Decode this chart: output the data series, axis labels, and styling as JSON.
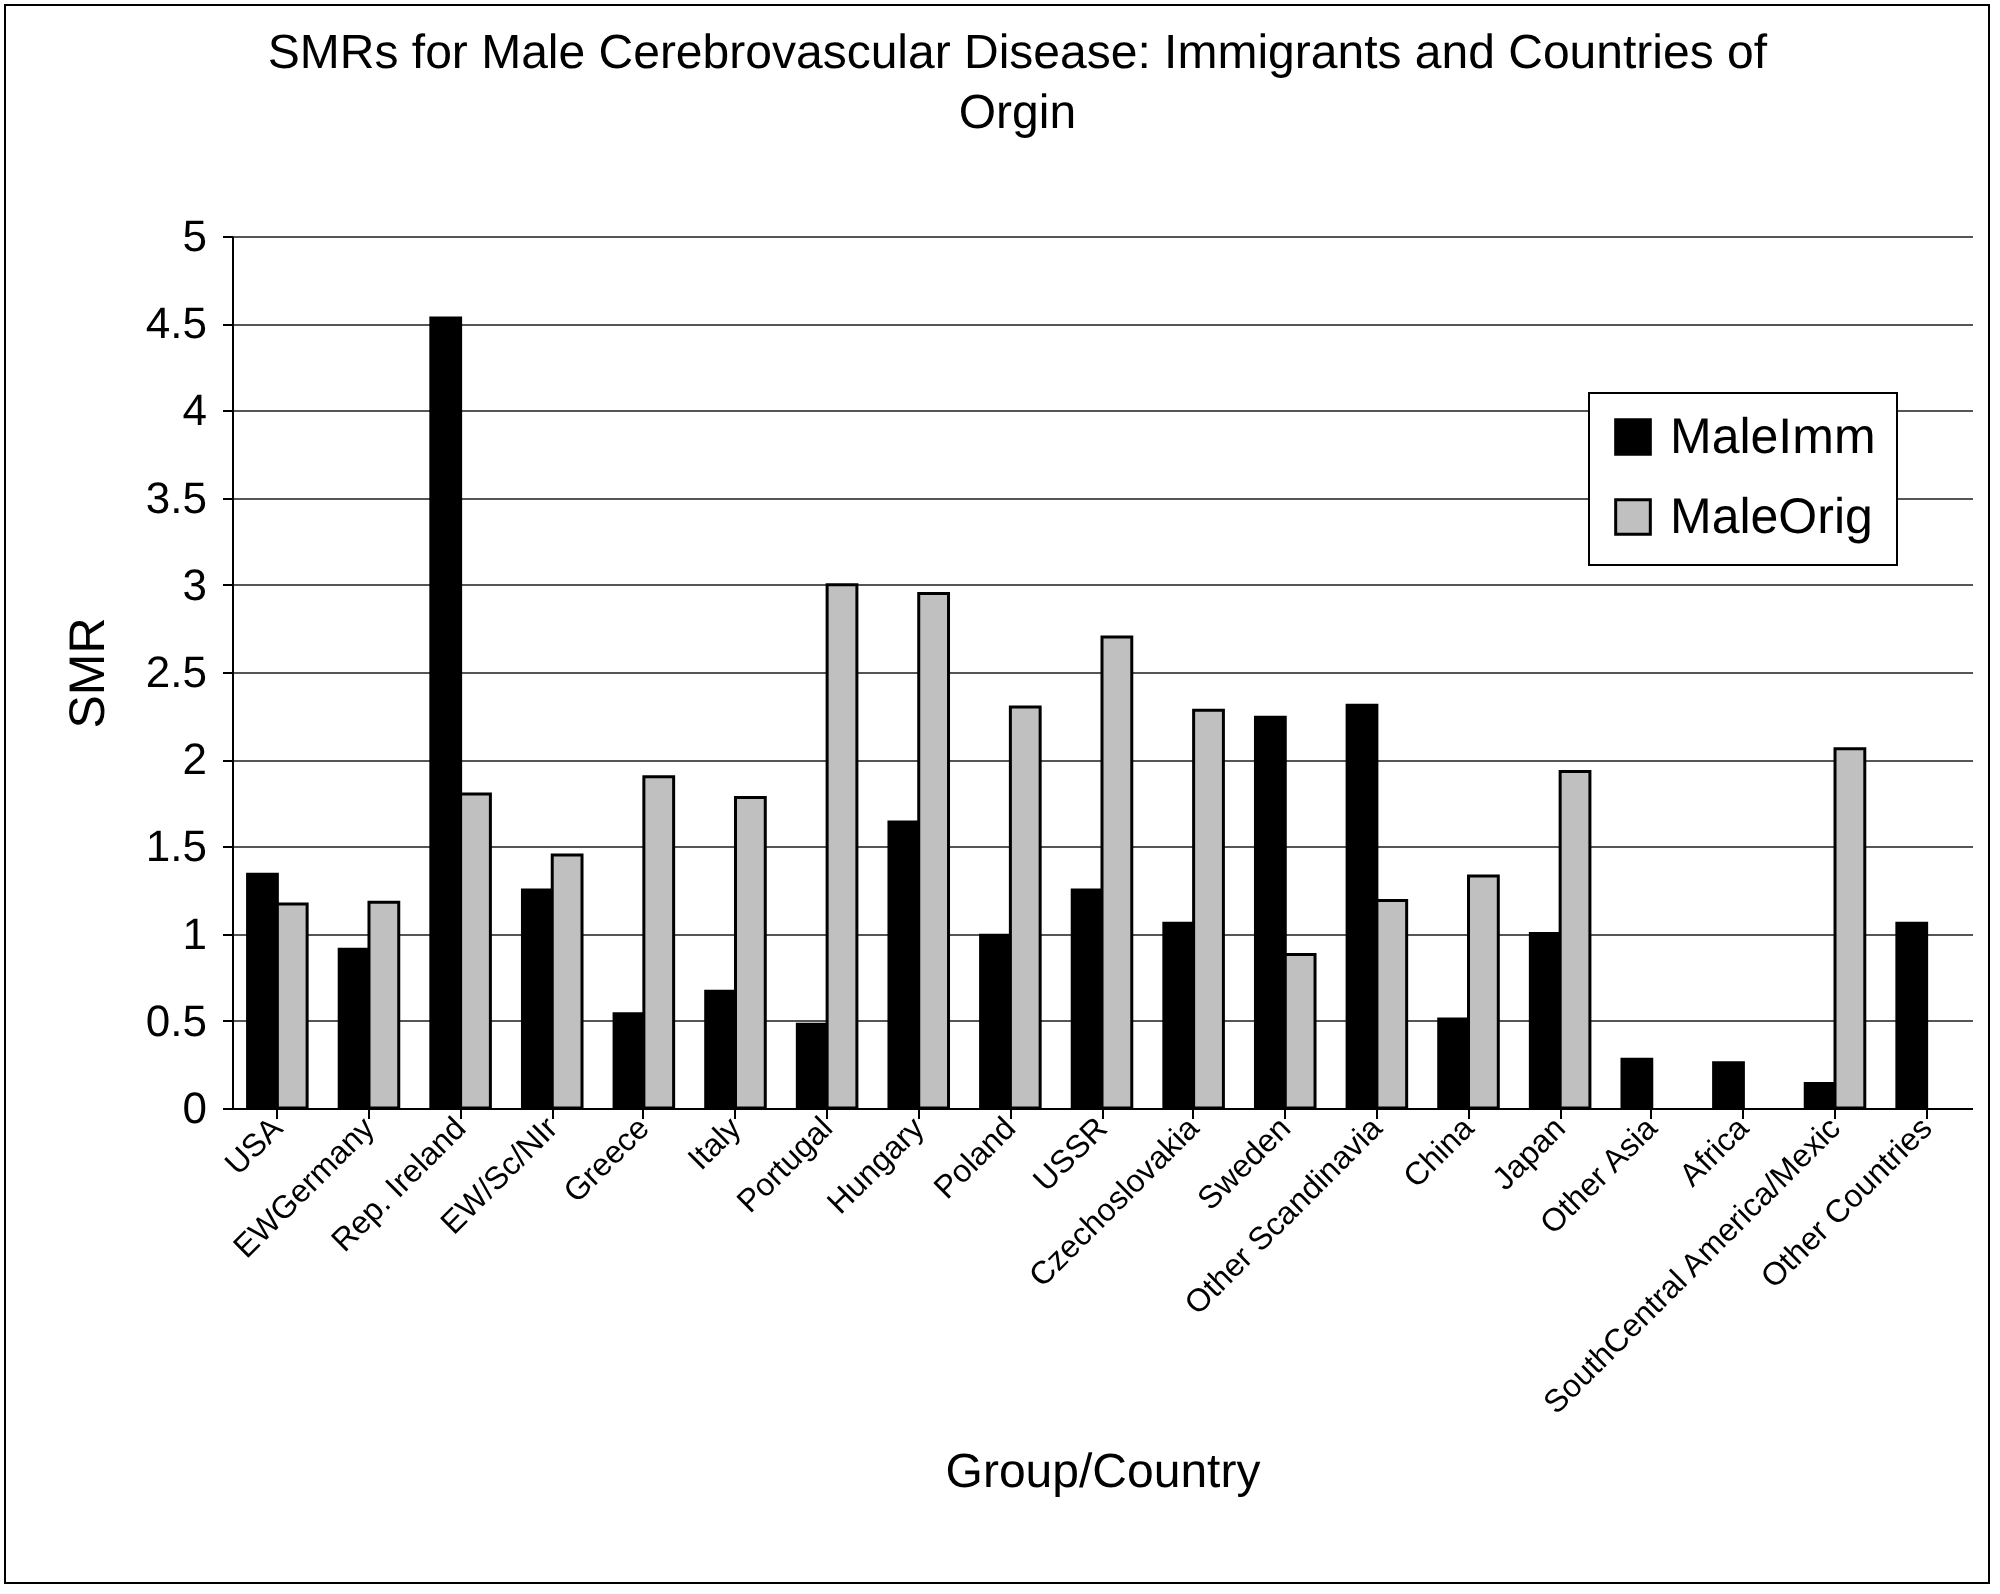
{
  "chart_data": {
    "type": "bar",
    "title": "SMRs for Male Cerebrovascular Disease: Immigrants and Countries of Orgin",
    "xlabel": "Group/Country",
    "ylabel": "SMR",
    "categories": [
      "USA",
      "EWGermany",
      "Rep. Ireland",
      "EW/Sc/NIr",
      "Greece",
      "Italy",
      "Portugal",
      "Hungary",
      "Poland",
      "USSR",
      "Czechoslovakia",
      "Sweden",
      "Other Scandinavia",
      "China",
      "Japan",
      "Other Asia",
      "Africa",
      "SouthCentral America/Mexic",
      "Other Countries"
    ],
    "series": [
      {
        "name": "MaleImm",
        "color": "#000000",
        "values": [
          1.34,
          0.91,
          4.53,
          1.25,
          0.54,
          0.67,
          0.48,
          1.64,
          0.99,
          1.25,
          1.06,
          2.24,
          2.31,
          0.51,
          1.0,
          0.28,
          0.26,
          0.14,
          1.06
        ]
      },
      {
        "name": "MaleOrig",
        "color": "#c0c0c0",
        "values": [
          1.17,
          1.18,
          1.8,
          1.45,
          1.9,
          1.78,
          3.0,
          2.95,
          2.3,
          2.7,
          2.28,
          0.88,
          1.19,
          1.33,
          1.93,
          null,
          null,
          2.06,
          null
        ]
      }
    ],
    "ylim": [
      0,
      5
    ],
    "yticks": [
      0,
      0.5,
      1,
      1.5,
      2,
      2.5,
      3,
      3.5,
      4,
      4.5,
      5
    ],
    "grid": "y",
    "legend": "right"
  }
}
